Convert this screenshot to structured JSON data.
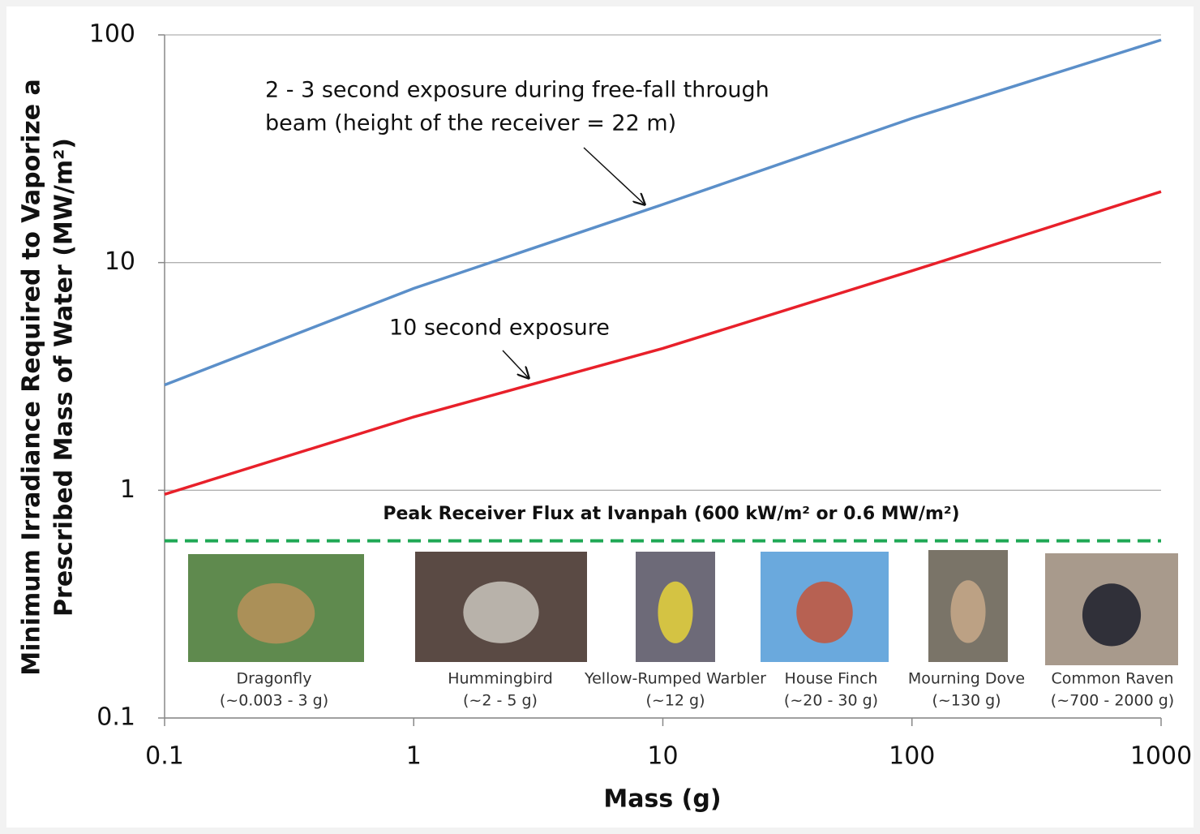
{
  "chart_data": {
    "type": "line",
    "xlabel": "Mass (g)",
    "ylabel": [
      "Minimum Irradiance Required to Vaporize a",
      "Prescribed Mass of Water (MW/m²)"
    ],
    "x": [
      0.1,
      1,
      10,
      100,
      1000
    ],
    "series": [
      {
        "color": "#5b8fc9",
        "values": [
          2.9,
          7.7,
          18,
          43,
          95
        ]
      },
      {
        "color": "#e8202a",
        "values": [
          0.96,
          2.1,
          4.2,
          9.2,
          20.5
        ]
      }
    ],
    "xscale": "log",
    "yscale": "log",
    "xlim": [
      0.1,
      1000
    ],
    "ylim": [
      0.1,
      100
    ],
    "xticks": [
      0.1,
      1,
      10,
      100,
      1000
    ],
    "yticks": [
      0.1,
      1,
      10,
      100
    ],
    "grid": true,
    "reference_line": {
      "value": 0.6,
      "label": "Peak Receiver Flux at Ivanpah (600 kW/m² or 0.6 MW/m²)",
      "color": "#1fa855"
    },
    "annotations": [
      {
        "lines": [
          "2 - 3 second exposure during free-fall through",
          "beam (height of the receiver = 22 m)"
        ]
      },
      {
        "lines": [
          "10 second exposure"
        ]
      }
    ],
    "images": [
      {
        "label": "Dragonfly",
        "detail": "(~0.003 - 3 g)"
      },
      {
        "label": "Hummingbird",
        "detail": "(~2 - 5 g)"
      },
      {
        "label": "Yellow-Rumped Warbler",
        "detail": "(~12 g)"
      },
      {
        "label": "House Finch",
        "detail": "(~20 - 30 g)"
      },
      {
        "label": "Mourning Dove",
        "detail": "(~130 g)"
      },
      {
        "label": "Common Raven",
        "detail": "(~700 - 2000 g)"
      }
    ]
  }
}
